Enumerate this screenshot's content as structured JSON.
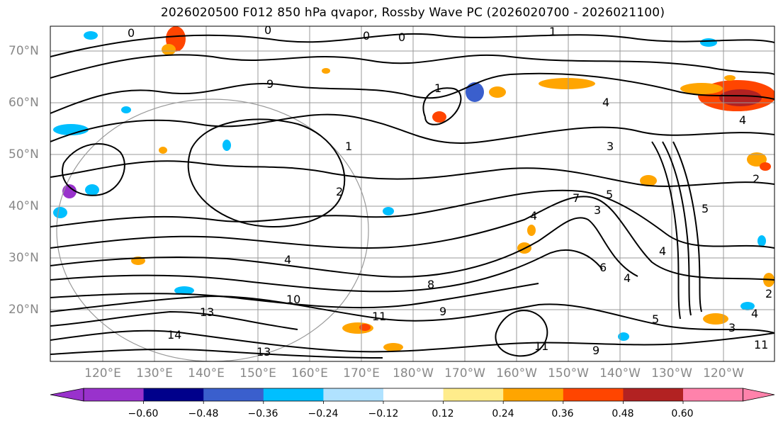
{
  "title": "2026020500 F012 850 hPa qvapor, Rossby Wave PC (2026020700 - 2026021100)",
  "lat_labels": [
    "70°N",
    "60°N",
    "50°N",
    "40°N",
    "30°N",
    "20°N"
  ],
  "lon_labels": [
    "120°E",
    "130°E",
    "140°E",
    "150°E",
    "160°E",
    "170°E",
    "180°W",
    "170°W",
    "160°W",
    "150°W",
    "140°W",
    "130°W",
    "120°W"
  ],
  "contour_labels": [
    "0",
    "0",
    "1",
    "0",
    "0",
    "9",
    "1",
    "2",
    "7",
    "1",
    "3",
    "4",
    "4",
    "5",
    "4",
    "2",
    "3",
    "6",
    "4",
    "8",
    "10",
    "11",
    "9",
    "13",
    "14",
    "5",
    "11",
    "9",
    "11",
    "4",
    "3",
    "2",
    "4",
    "13",
    "5",
    "4"
  ],
  "colorbar": {
    "ticks": [
      "−0.60",
      "−0.48",
      "−0.36",
      "−0.24",
      "−0.12",
      "0.12",
      "0.24",
      "0.36",
      "0.48",
      "0.60"
    ],
    "colors": [
      "#9932cc",
      "#00008b",
      "#3a5fcd",
      "#00bfff",
      "#b0e2ff",
      "#ffffff",
      "#ffec8b",
      "#ffa500",
      "#ff4500",
      "#b22222",
      "#ff82ab"
    ]
  }
}
